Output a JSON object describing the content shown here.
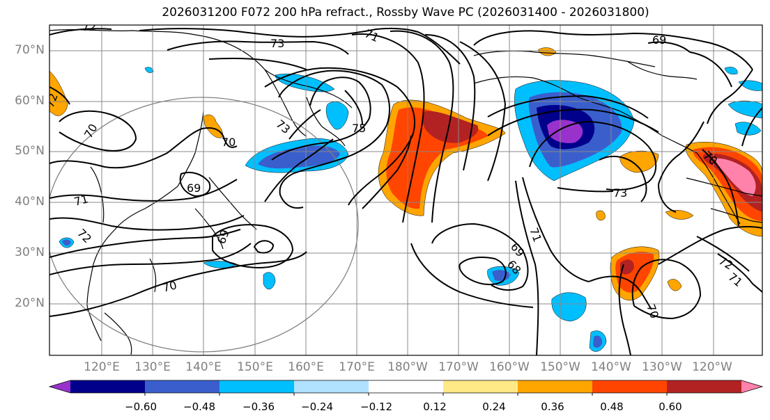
{
  "title": "2026031200 F072 200 hPa refract., Rossby Wave PC (2026031400 - 2026031800)",
  "lat_labels": [
    "70°N",
    "60°N",
    "50°N",
    "40°N",
    "30°N",
    "20°N"
  ],
  "lon_labels": [
    "120°E",
    "130°E",
    "140°E",
    "150°E",
    "160°E",
    "170°E",
    "180°W",
    "170°W",
    "160°W",
    "150°W",
    "140°W",
    "130°W",
    "120°W"
  ],
  "contour_labels": [
    "72",
    "73",
    "71",
    "69",
    "72",
    "70",
    "73",
    "75",
    "70",
    "69",
    "71",
    "72",
    "69",
    "70",
    "73",
    "69",
    "68",
    "71",
    "72",
    "71",
    "70",
    "70"
  ],
  "colorbar": {
    "tick_labels": [
      "−0.60",
      "−0.48",
      "−0.36",
      "−0.24",
      "−0.12",
      "0.12",
      "0.24",
      "0.36",
      "0.48",
      "0.60"
    ],
    "colors": [
      "#9932CC",
      "#00008B",
      "#3A5FCD",
      "#00BFFF",
      "#B0E2FF",
      "#FFFFFF",
      "#FFE986",
      "#FFA500",
      "#FF4500",
      "#B22222",
      "#FF82AB"
    ]
  }
}
